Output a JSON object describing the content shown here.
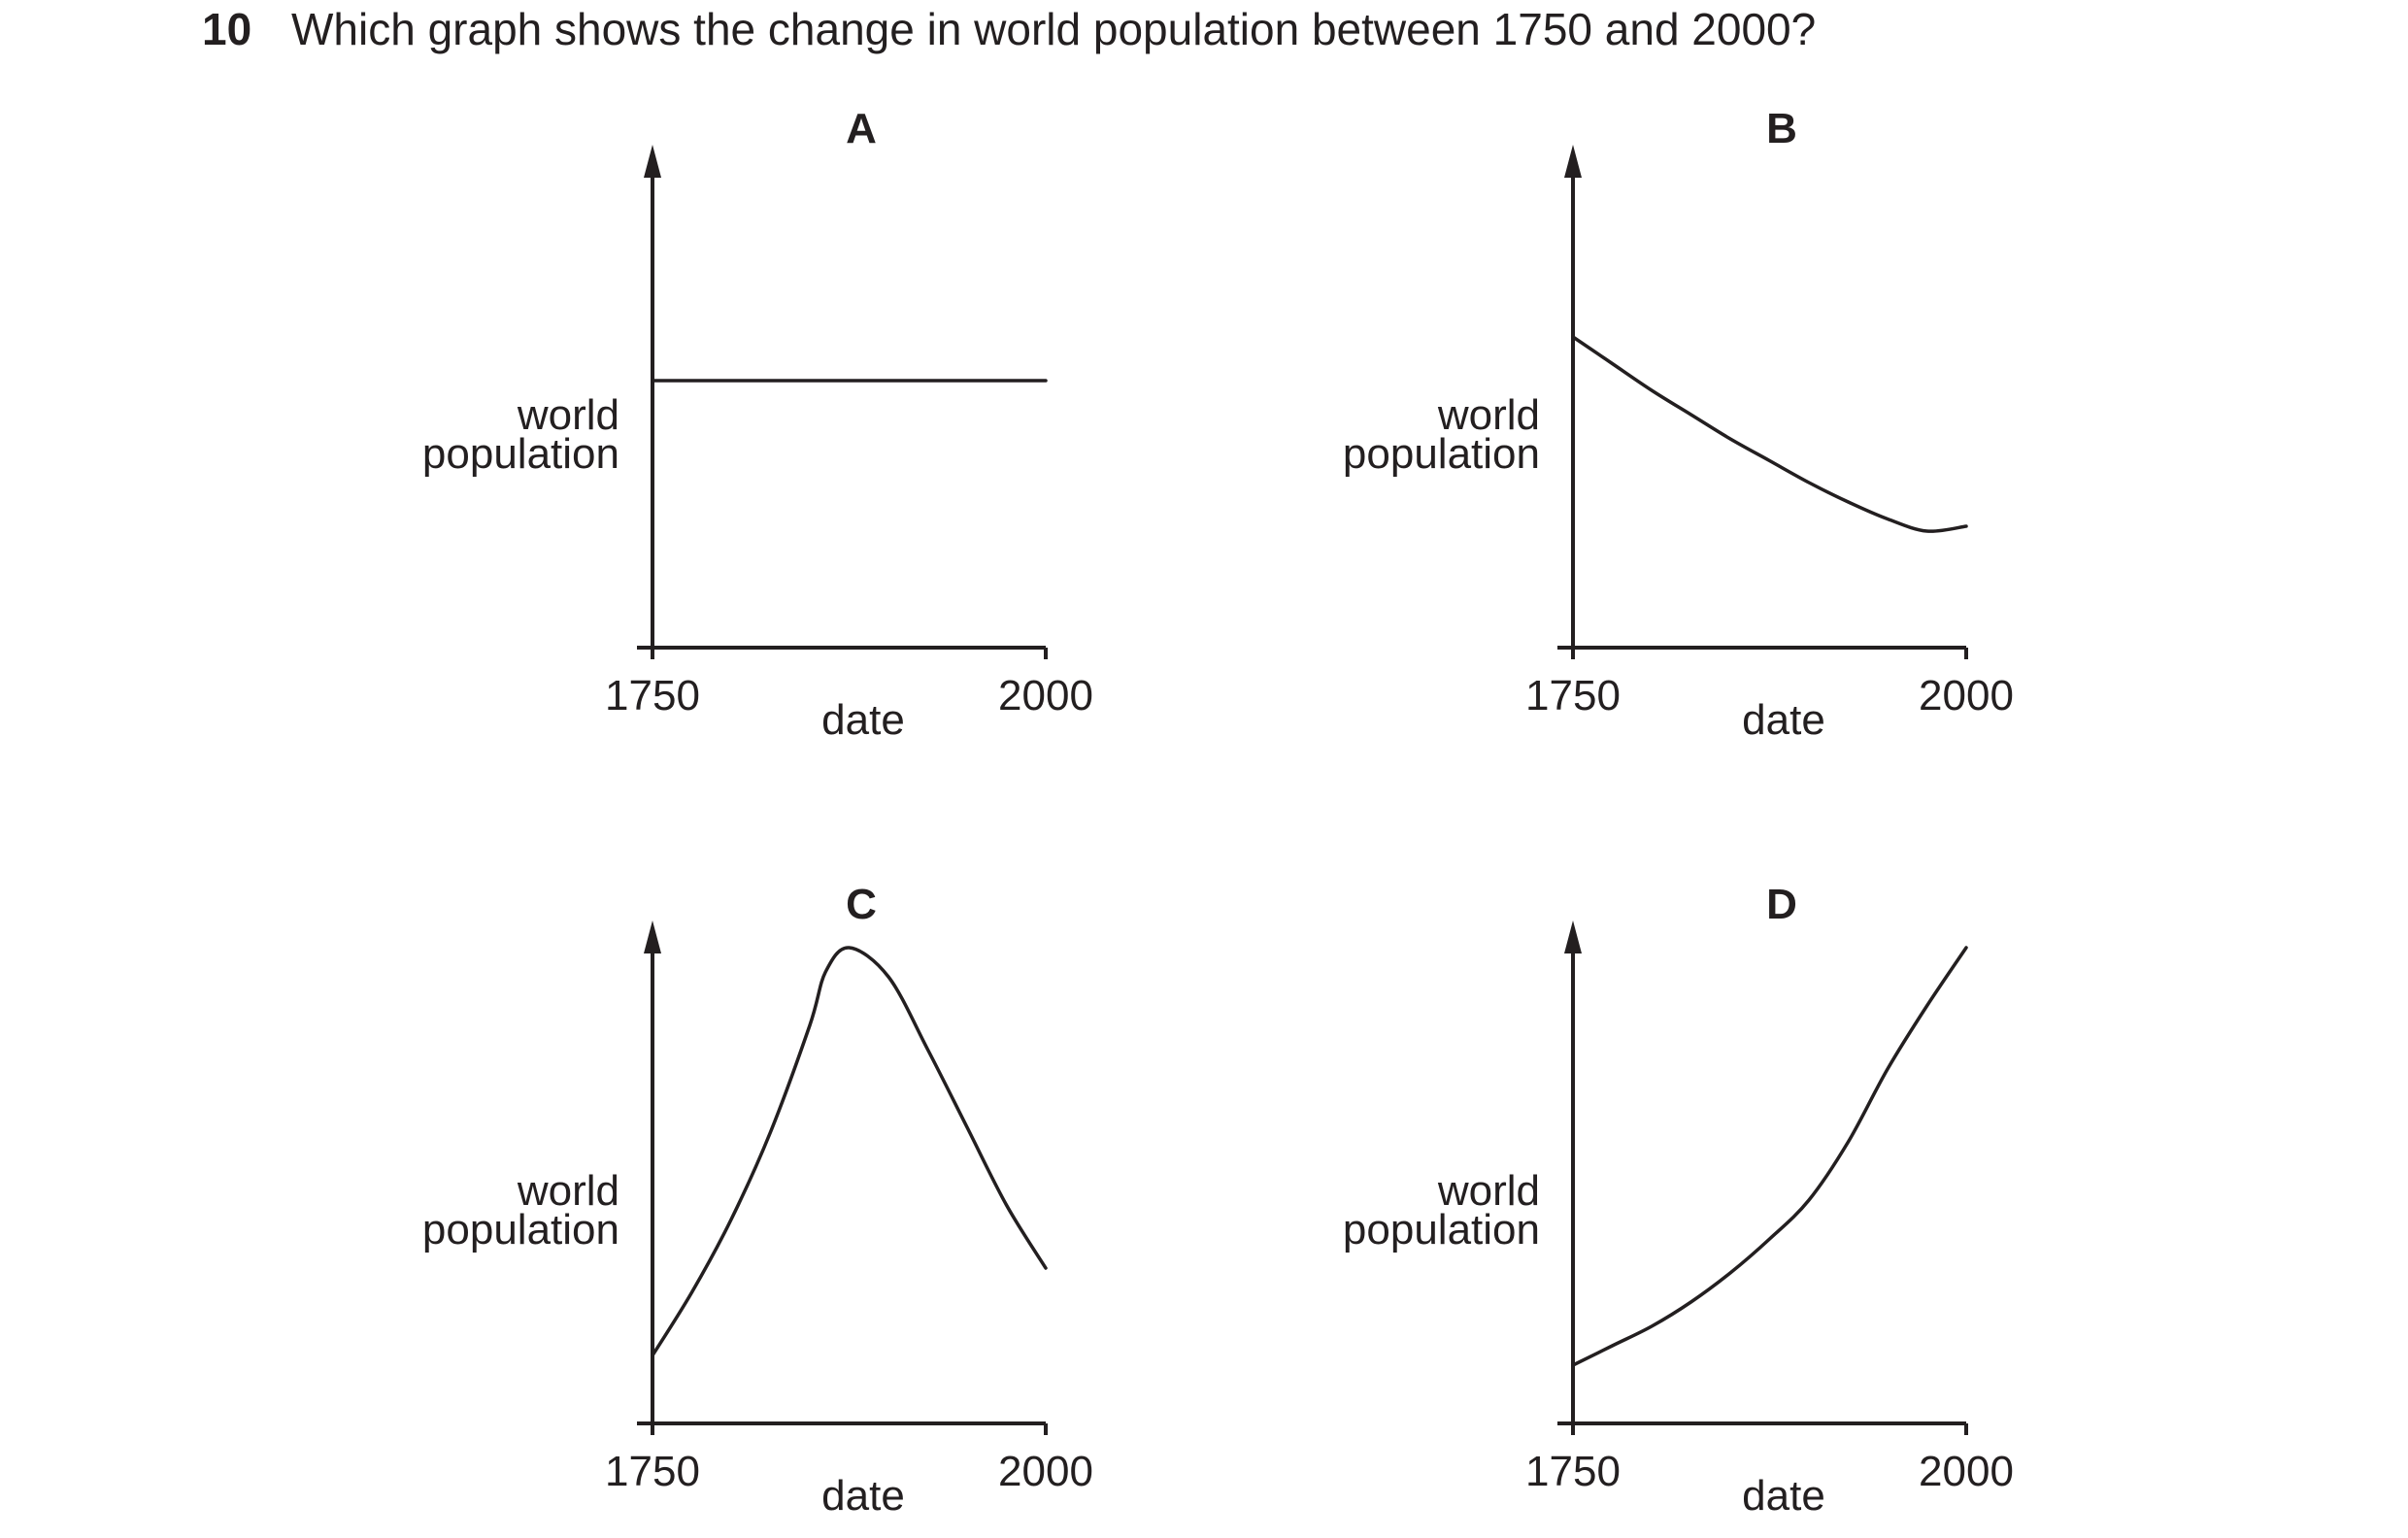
{
  "question": {
    "number": "10",
    "text": "Which graph shows the change in world population between 1750 and 2000?"
  },
  "colors": {
    "ink": "#231f20",
    "background": "#ffffff"
  },
  "chart_data": [
    {
      "type": "line",
      "panel": "A",
      "title": "A",
      "xlabel": "date",
      "ylabel": [
        "world",
        "population"
      ],
      "xticks": [
        "1750",
        "2000"
      ],
      "xlim": [
        1750,
        2000
      ],
      "ylim": [
        0,
        1
      ],
      "y_tick_labels": false,
      "grid": false,
      "series": [
        {
          "x": [
            1750,
            1775,
            1800,
            1825,
            1850,
            1875,
            1900,
            1925,
            1950,
            1975,
            2000
          ],
          "y": [
            0.55,
            0.55,
            0.55,
            0.55,
            0.55,
            0.55,
            0.55,
            0.55,
            0.55,
            0.55,
            0.55
          ]
        }
      ]
    },
    {
      "type": "line",
      "panel": "B",
      "title": "B",
      "xlabel": "date",
      "ylabel": [
        "world",
        "population"
      ],
      "xticks": [
        "1750",
        "2000"
      ],
      "xlim": [
        1750,
        2000
      ],
      "ylim": [
        0,
        1
      ],
      "y_tick_labels": false,
      "grid": false,
      "series": [
        {
          "x": [
            1750,
            1775,
            1800,
            1825,
            1850,
            1875,
            1900,
            1925,
            1950,
            1975,
            2000
          ],
          "y": [
            0.64,
            0.585,
            0.53,
            0.48,
            0.43,
            0.385,
            0.34,
            0.3,
            0.265,
            0.24,
            0.25
          ]
        }
      ]
    },
    {
      "type": "line",
      "panel": "C",
      "title": "C",
      "xlabel": "date",
      "ylabel": [
        "world",
        "population"
      ],
      "xticks": [
        "1750",
        "2000"
      ],
      "xlim": [
        1750,
        2000
      ],
      "ylim": [
        0,
        1
      ],
      "y_tick_labels": false,
      "grid": false,
      "series": [
        {
          "x": [
            1750,
            1775,
            1800,
            1825,
            1850,
            1860,
            1875,
            1900,
            1925,
            1950,
            1975,
            2000
          ],
          "y": [
            0.14,
            0.27,
            0.42,
            0.6,
            0.82,
            0.93,
            0.98,
            0.92,
            0.77,
            0.61,
            0.45,
            0.32
          ]
        }
      ]
    },
    {
      "type": "line",
      "panel": "D",
      "title": "D",
      "xlabel": "date",
      "ylabel": [
        "world",
        "population"
      ],
      "xticks": [
        "1750",
        "2000"
      ],
      "xlim": [
        1750,
        2000
      ],
      "ylim": [
        0,
        1
      ],
      "y_tick_labels": false,
      "grid": false,
      "series": [
        {
          "x": [
            1750,
            1775,
            1800,
            1825,
            1850,
            1875,
            1900,
            1925,
            1950,
            1975,
            2000
          ],
          "y": [
            0.12,
            0.16,
            0.2,
            0.25,
            0.31,
            0.38,
            0.46,
            0.58,
            0.73,
            0.86,
            0.98
          ]
        }
      ]
    }
  ]
}
